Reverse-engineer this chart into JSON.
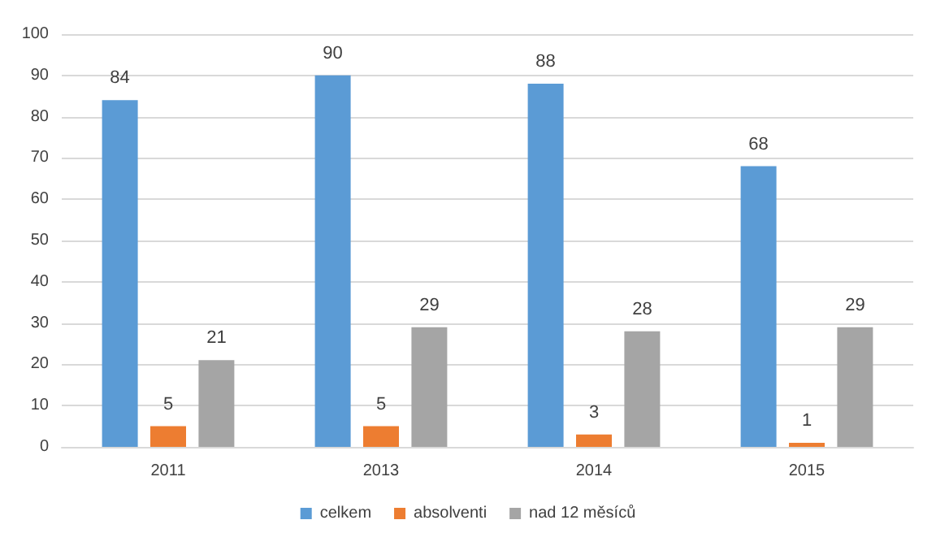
{
  "chart_data": {
    "type": "bar",
    "categories": [
      "2011",
      "2013",
      "2014",
      "2015"
    ],
    "series": [
      {
        "name": "celkem",
        "color": "#5b9bd5",
        "values": [
          84,
          90,
          88,
          68
        ]
      },
      {
        "name": "absolventi",
        "color": "#ed7d31",
        "values": [
          5,
          5,
          3,
          1
        ]
      },
      {
        "name": "nad 12 měsíců",
        "color": "#a5a5a5",
        "values": [
          21,
          29,
          28,
          29
        ]
      }
    ],
    "ylim": [
      0,
      100
    ],
    "yticks": [
      0,
      10,
      20,
      30,
      40,
      50,
      60,
      70,
      80,
      90,
      100
    ],
    "grid": "y",
    "legend": "bottom",
    "data_labels": true
  }
}
